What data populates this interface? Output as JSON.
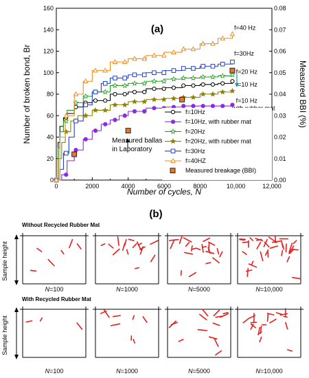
{
  "chart_data": {
    "type": "line",
    "panel_label": "(a)",
    "xlabel": "Number of cycles, N",
    "ylabel": "Number of broken bond, Br",
    "y2label": "Measured BBI (%)",
    "xlim": [
      0,
      12000
    ],
    "ylim": [
      0,
      160
    ],
    "y2lim": [
      0,
      0.08
    ],
    "x_ticks": [
      "0",
      "2000",
      "4000",
      "6000",
      "8000",
      "10,000",
      "12,000"
    ],
    "y_ticks": [
      "0",
      "20",
      "40",
      "60",
      "80",
      "100",
      "120",
      "140",
      "160"
    ],
    "y2_ticks": [
      "0.00",
      "0.01",
      "0.02",
      "0.03",
      "0.04",
      "0.05",
      "0.06",
      "0.07",
      "0.08"
    ],
    "grid": false,
    "legend_position": "lower-right",
    "series": [
      {
        "name": "f=10Hz",
        "color": "#000000",
        "marker": "circle-open",
        "x": [
          0,
          100,
          200,
          400,
          600,
          1000,
          1500,
          2000,
          3000,
          4000,
          5000,
          6000,
          7000,
          8000,
          9000,
          9800
        ],
        "y": [
          0,
          35,
          50,
          58,
          62,
          68,
          72,
          74,
          80,
          82,
          85,
          86,
          88,
          89,
          90,
          92
        ]
      },
      {
        "name": "f=10Hz, with rubber mat",
        "color": "#8a2be2",
        "marker": "circle-filled",
        "x": [
          0,
          300,
          600,
          1000,
          1500,
          2000,
          2500,
          3000,
          3500,
          4000,
          5000,
          6000,
          7000,
          8000,
          9000,
          9800
        ],
        "y": [
          0,
          5,
          18,
          28,
          38,
          46,
          52,
          56,
          60,
          64,
          67,
          68,
          69,
          69,
          69,
          70
        ]
      },
      {
        "name": "f=20Hz",
        "color": "#22a022",
        "marker": "star-open",
        "x": [
          0,
          100,
          200,
          400,
          600,
          1000,
          1500,
          2000,
          3000,
          4000,
          5000,
          6000,
          7000,
          8000,
          9000,
          9800
        ],
        "y": [
          0,
          30,
          45,
          55,
          65,
          72,
          78,
          82,
          88,
          90,
          92,
          94,
          95,
          96,
          97,
          98
        ]
      },
      {
        "name": "f=20Hz, with rubber mat",
        "color": "#8b8000",
        "marker": "star-filled",
        "x": [
          0,
          100,
          300,
          500,
          800,
          1200,
          2000,
          3000,
          4000,
          5000,
          6000,
          7000,
          8000,
          9000,
          9800
        ],
        "y": [
          0,
          20,
          35,
          45,
          55,
          60,
          65,
          70,
          73,
          75,
          76,
          77,
          80,
          82,
          83
        ]
      },
      {
        "name": "f=30Hz",
        "color": "#1f3fd0",
        "marker": "square-open",
        "x": [
          0,
          200,
          400,
          700,
          1000,
          1500,
          2000,
          2500,
          3000,
          4000,
          5000,
          6000,
          7000,
          8000,
          9000,
          9800
        ],
        "y": [
          0,
          10,
          25,
          40,
          55,
          70,
          82,
          90,
          95,
          98,
          100,
          102,
          104,
          106,
          108,
          110
        ]
      },
      {
        "name": "f=40HZ",
        "color": "#f08c1e",
        "marker": "triangle-open",
        "x": [
          0,
          200,
          500,
          1000,
          1500,
          2000,
          3000,
          4000,
          5000,
          6000,
          7000,
          8000,
          9000,
          9800
        ],
        "y": [
          0,
          40,
          60,
          80,
          92,
          102,
          110,
          113,
          116,
          119,
          122,
          127,
          132,
          136
        ]
      }
    ],
    "measured_breakage": {
      "name": "Measured breakage (BBI)",
      "color": "#e87722",
      "x": [
        1000,
        4000,
        7000,
        9800
      ],
      "y2": [
        0.012,
        0.023,
        0.0375,
        0.051
      ]
    },
    "annotations": [
      {
        "text": "f=40 Hz",
        "x": 9900,
        "y": 140
      },
      {
        "text": "f=30Hz",
        "x": 9900,
        "y": 116
      },
      {
        "text": "f=20 Hz",
        "x": 10000,
        "y": 99
      },
      {
        "text": "f=10 Hz",
        "x": 10000,
        "y": 87
      },
      {
        "text": "f=10 Hz",
        "x": 10000,
        "y": 72
      },
      {
        "text": "with rubber mat",
        "x": 9800,
        "y": 65
      },
      {
        "text": "Measured ballast breakage",
        "x": 3100,
        "y": 35
      },
      {
        "text": "in Laboratory",
        "x": 3100,
        "y": 27
      }
    ]
  },
  "panel_b": {
    "label": "(b)",
    "row1_title": "Without Recycled Rubber Mat",
    "row2_title": "With Recycled Rubber Mat",
    "axis_label": "Sample height",
    "n_prefix": "N",
    "n_labels": [
      "=100",
      "=1000",
      "=5000",
      "=10,000"
    ],
    "crack_color": "#e81c1c",
    "row1_crack_counts": [
      6,
      16,
      22,
      34
    ],
    "row2_crack_counts": [
      3,
      8,
      14,
      20
    ]
  }
}
